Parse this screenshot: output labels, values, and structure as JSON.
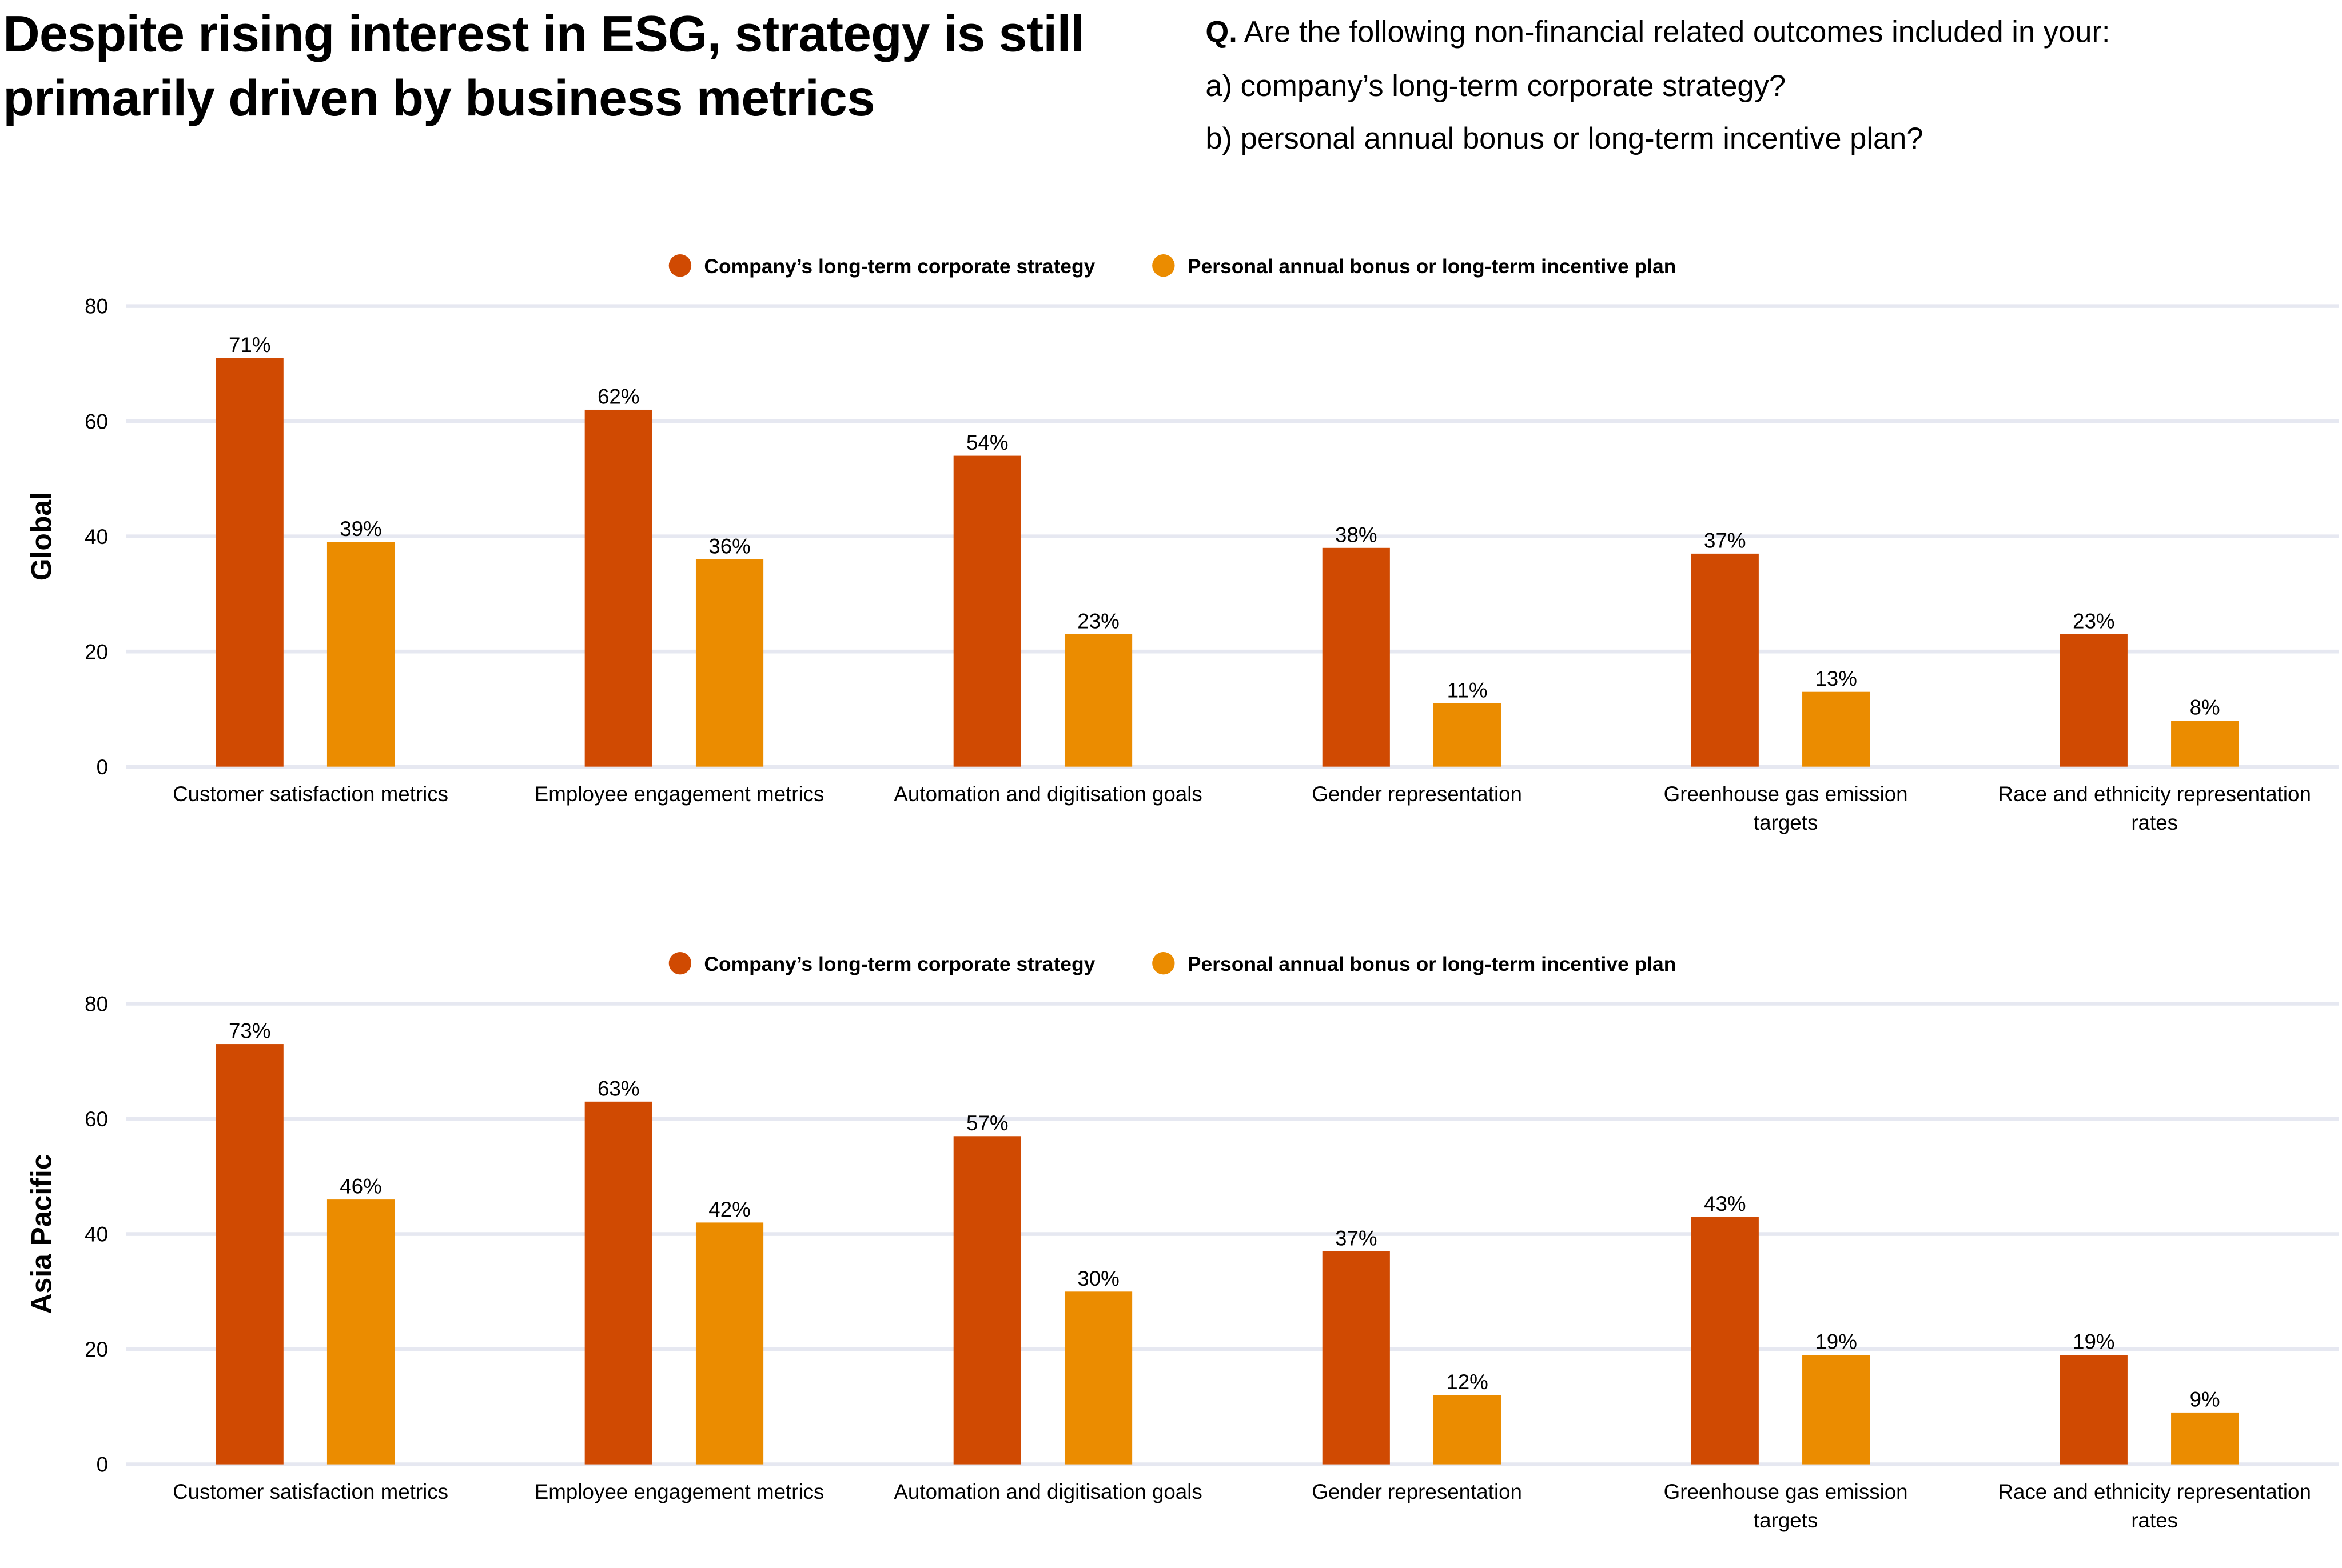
{
  "title": "Despite rising interest in ESG, strategy is still primarily driven by business metrics",
  "question": {
    "prefix": "Q.",
    "text": "Are the following non-financial related outcomes included in your:",
    "a": "a) company’s long-term corporate strategy?",
    "b": "b) personal annual bonus or long-term incentive plan?"
  },
  "colors": {
    "strategy": "#D04A02",
    "bonus": "#EB8C00",
    "grid": "#E6E8F1"
  },
  "chart_data": [
    {
      "type": "bar",
      "ylabel": "Global",
      "ylim": [
        0,
        80
      ],
      "yticks": [
        0,
        20,
        40,
        60,
        80
      ],
      "grid": true,
      "legend": "top-center",
      "categories": [
        "Customer satisfaction metrics",
        "Employee engagement metrics",
        "Automation and digitisation goals",
        "Gender representation",
        "Greenhouse gas emission targets",
        "Race and ethnicity representation rates"
      ],
      "series": [
        {
          "name": "Company’s long-term corporate strategy",
          "values": [
            71,
            62,
            54,
            38,
            37,
            23
          ],
          "labels": [
            "71%",
            "62%",
            "54%",
            "38%",
            "37%",
            "23%"
          ]
        },
        {
          "name": "Personal annual bonus or long-term incentive plan",
          "values": [
            39,
            36,
            23,
            11,
            13,
            8
          ],
          "labels": [
            "39%",
            "36%",
            "23%",
            "11%",
            "13%",
            "8%"
          ]
        }
      ]
    },
    {
      "type": "bar",
      "ylabel": "Asia Pacific",
      "ylim": [
        0,
        80
      ],
      "yticks": [
        0,
        20,
        40,
        60,
        80
      ],
      "grid": true,
      "legend": "top-center",
      "categories": [
        "Customer satisfaction metrics",
        "Employee engagement metrics",
        "Automation and digitisation goals",
        "Gender representation",
        "Greenhouse gas emission targets",
        "Race and ethnicity representation rates"
      ],
      "series": [
        {
          "name": "Company’s long-term corporate strategy",
          "values": [
            73,
            63,
            57,
            37,
            43,
            19
          ],
          "labels": [
            "73%",
            "63%",
            "57%",
            "37%",
            "43%",
            "19%"
          ]
        },
        {
          "name": "Personal annual bonus or long-term incentive plan",
          "values": [
            46,
            42,
            30,
            12,
            19,
            9
          ],
          "labels": [
            "46%",
            "42%",
            "30%",
            "12%",
            "19%",
            "9%"
          ]
        }
      ]
    }
  ]
}
